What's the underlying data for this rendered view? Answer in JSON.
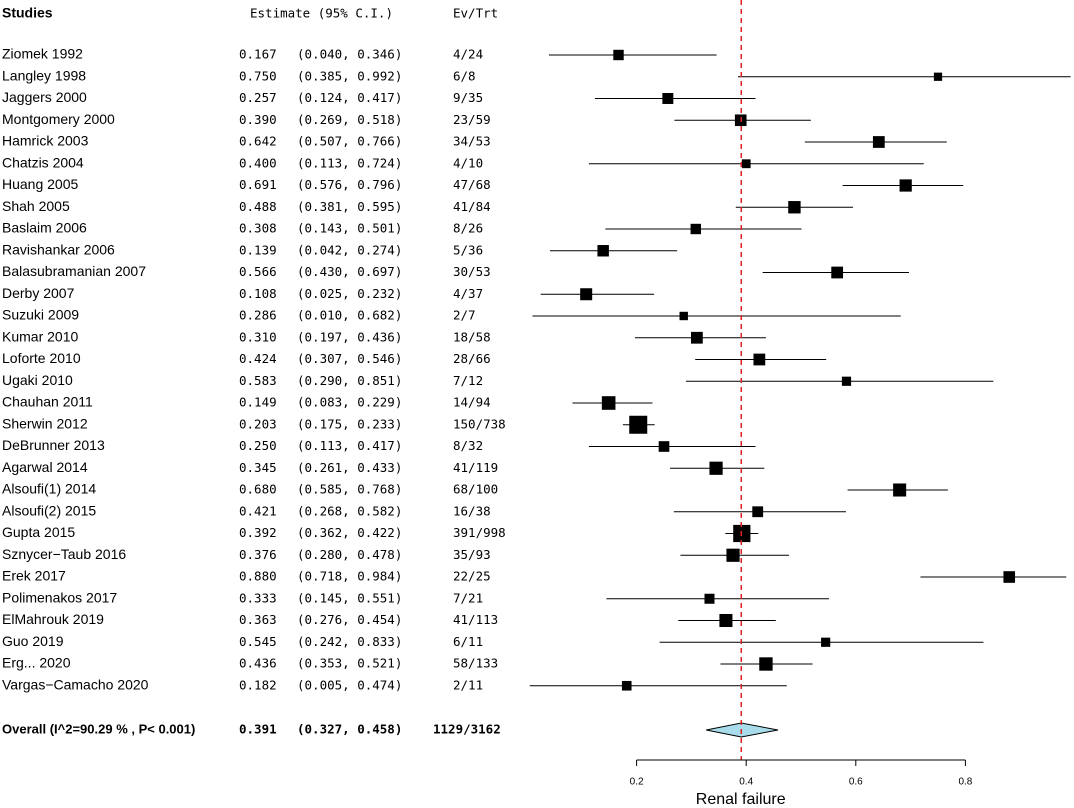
{
  "chart_data": {
    "type": "forest",
    "headers": {
      "studies": "Studies",
      "estimate": "Estimate (95% C.I.)",
      "events": "Ev/Trt"
    },
    "studies": [
      {
        "name": "Ziomek 1992",
        "est": 0.167,
        "lo": 0.04,
        "hi": 0.346,
        "est_text": "0.167",
        "ci_text": "(0.040, 0.346)",
        "ev": "4/24",
        "weight": 0.55
      },
      {
        "name": "Langley 1998",
        "est": 0.75,
        "lo": 0.385,
        "hi": 0.992,
        "est_text": "0.750",
        "ci_text": "(0.385, 0.992)",
        "ev": "6/8",
        "weight": 0.28
      },
      {
        "name": "Jaggers 2000",
        "est": 0.257,
        "lo": 0.124,
        "hi": 0.417,
        "est_text": "0.257",
        "ci_text": "(0.124, 0.417)",
        "ev": "9/35",
        "weight": 0.62
      },
      {
        "name": "Montgomery 2000",
        "est": 0.39,
        "lo": 0.269,
        "hi": 0.518,
        "est_text": "0.390",
        "ci_text": "(0.269, 0.518)",
        "ev": "23/59",
        "weight": 0.7
      },
      {
        "name": "Hamrick 2003",
        "est": 0.642,
        "lo": 0.507,
        "hi": 0.766,
        "est_text": "0.642",
        "ci_text": "(0.507, 0.766)",
        "ev": "34/53",
        "weight": 0.72
      },
      {
        "name": "Chatzis 2004",
        "est": 0.4,
        "lo": 0.113,
        "hi": 0.724,
        "est_text": "0.400",
        "ci_text": "(0.113, 0.724)",
        "ev": "4/10",
        "weight": 0.35
      },
      {
        "name": "Huang 2005",
        "est": 0.691,
        "lo": 0.576,
        "hi": 0.796,
        "est_text": "0.691",
        "ci_text": "(0.576, 0.796)",
        "ev": "47/68",
        "weight": 0.78
      },
      {
        "name": "Shah 2005",
        "est": 0.488,
        "lo": 0.381,
        "hi": 0.595,
        "est_text": "0.488",
        "ci_text": "(0.381, 0.595)",
        "ev": "41/84",
        "weight": 0.8
      },
      {
        "name": "Baslaim 2006",
        "est": 0.308,
        "lo": 0.143,
        "hi": 0.501,
        "est_text": "0.308",
        "ci_text": "(0.143, 0.501)",
        "ev": "8/26",
        "weight": 0.55
      },
      {
        "name": "Ravishankar 2006",
        "est": 0.139,
        "lo": 0.042,
        "hi": 0.274,
        "est_text": "0.139",
        "ci_text": "(0.042, 0.274)",
        "ev": "5/36",
        "weight": 0.68
      },
      {
        "name": "Balasubramanian 2007",
        "est": 0.566,
        "lo": 0.43,
        "hi": 0.697,
        "est_text": "0.566",
        "ci_text": "(0.430, 0.697)",
        "ev": "30/53",
        "weight": 0.72
      },
      {
        "name": "Derby 2007",
        "est": 0.108,
        "lo": 0.025,
        "hi": 0.232,
        "est_text": "0.108",
        "ci_text": "(0.025, 0.232)",
        "ev": "4/37",
        "weight": 0.75
      },
      {
        "name": "Suzuki 2009",
        "est": 0.286,
        "lo": 0.01,
        "hi": 0.682,
        "est_text": "0.286",
        "ci_text": "(0.010, 0.682)",
        "ev": "2/7",
        "weight": 0.3
      },
      {
        "name": "Kumar 2010",
        "est": 0.31,
        "lo": 0.197,
        "hi": 0.436,
        "est_text": "0.310",
        "ci_text": "(0.197, 0.436)",
        "ev": "18/58",
        "weight": 0.72
      },
      {
        "name": "Loforte 2010",
        "est": 0.424,
        "lo": 0.307,
        "hi": 0.546,
        "est_text": "0.424",
        "ci_text": "(0.307, 0.546)",
        "ev": "28/66",
        "weight": 0.72
      },
      {
        "name": "Ugaki 2010",
        "est": 0.583,
        "lo": 0.29,
        "hi": 0.851,
        "est_text": "0.583",
        "ci_text": "(0.290, 0.851)",
        "ev": "7/12",
        "weight": 0.4
      },
      {
        "name": "Chauhan 2011",
        "est": 0.149,
        "lo": 0.083,
        "hi": 0.229,
        "est_text": "0.149",
        "ci_text": "(0.083, 0.229)",
        "ev": "14/94",
        "weight": 0.95
      },
      {
        "name": "Sherwin 2012",
        "est": 0.203,
        "lo": 0.175,
        "hi": 0.233,
        "est_text": "0.203",
        "ci_text": "(0.175, 0.233)",
        "ev": "150/738",
        "weight": 1.5
      },
      {
        "name": "DeBrunner 2013",
        "est": 0.25,
        "lo": 0.113,
        "hi": 0.417,
        "est_text": "0.250",
        "ci_text": "(0.113, 0.417)",
        "ev": "8/32",
        "weight": 0.58
      },
      {
        "name": "Agarwal 2014",
        "est": 0.345,
        "lo": 0.261,
        "hi": 0.433,
        "est_text": "0.345",
        "ci_text": "(0.261, 0.433)",
        "ev": "41/119",
        "weight": 0.9
      },
      {
        "name": "Alsoufi(1) 2014",
        "est": 0.68,
        "lo": 0.585,
        "hi": 0.768,
        "est_text": "0.680",
        "ci_text": "(0.585, 0.768)",
        "ev": "68/100",
        "weight": 0.88
      },
      {
        "name": "Alsoufi(2) 2015",
        "est": 0.421,
        "lo": 0.268,
        "hi": 0.582,
        "est_text": "0.421",
        "ci_text": "(0.268, 0.582)",
        "ev": "16/38",
        "weight": 0.6
      },
      {
        "name": "Gupta 2015",
        "est": 0.392,
        "lo": 0.362,
        "hi": 0.422,
        "est_text": "0.392",
        "ci_text": "(0.362, 0.422)",
        "ev": "391/998",
        "weight": 1.4
      },
      {
        "name": "Sznycer−Taub 2016",
        "est": 0.376,
        "lo": 0.28,
        "hi": 0.478,
        "est_text": "0.376",
        "ci_text": "(0.280, 0.478)",
        "ev": "35/93",
        "weight": 0.9
      },
      {
        "name": "Erek 2017",
        "est": 0.88,
        "lo": 0.718,
        "hi": 0.984,
        "est_text": "0.880",
        "ci_text": "(0.718, 0.984)",
        "ev": "22/25",
        "weight": 0.7
      },
      {
        "name": "Polimenakos 2017",
        "est": 0.333,
        "lo": 0.145,
        "hi": 0.551,
        "est_text": "0.333",
        "ci_text": "(0.145, 0.551)",
        "ev": "7/21",
        "weight": 0.5
      },
      {
        "name": "ElMahrouk 2019",
        "est": 0.363,
        "lo": 0.276,
        "hi": 0.454,
        "est_text": "0.363",
        "ci_text": "(0.276, 0.454)",
        "ev": "41/113",
        "weight": 0.88
      },
      {
        "name": "Guo 2019",
        "est": 0.545,
        "lo": 0.242,
        "hi": 0.833,
        "est_text": "0.545",
        "ci_text": "(0.242, 0.833)",
        "ev": "6/11",
        "weight": 0.4
      },
      {
        "name": "Erg... 2020",
        "est": 0.436,
        "lo": 0.353,
        "hi": 0.521,
        "est_text": "0.436",
        "ci_text": "(0.353, 0.521)",
        "ev": "58/133",
        "weight": 0.92
      },
      {
        "name": "Vargas−Camacho 2020",
        "est": 0.182,
        "lo": 0.005,
        "hi": 0.474,
        "est_text": "0.182",
        "ci_text": "(0.005, 0.474)",
        "ev": "2/11",
        "weight": 0.45
      }
    ],
    "overall": {
      "label": "Overall (I^2=90.29 % , P< 0.001)",
      "est": 0.391,
      "lo": 0.327,
      "hi": 0.458,
      "est_text": "0.391",
      "ci_text": "(0.327, 0.458)",
      "ev": "1129/3162"
    },
    "x_axis": {
      "min": 0.0,
      "max": 1.0,
      "ticks": [
        0.2,
        0.4,
        0.6,
        0.8
      ],
      "tick_labels": [
        "0.2",
        "0.4",
        "0.6",
        "0.8"
      ],
      "label": "Renal failure"
    },
    "reference_line": 0.391,
    "colors": {
      "marker": "#000000",
      "reference_line": "#dd2222",
      "diamond_fill": "#a8dcea"
    }
  }
}
